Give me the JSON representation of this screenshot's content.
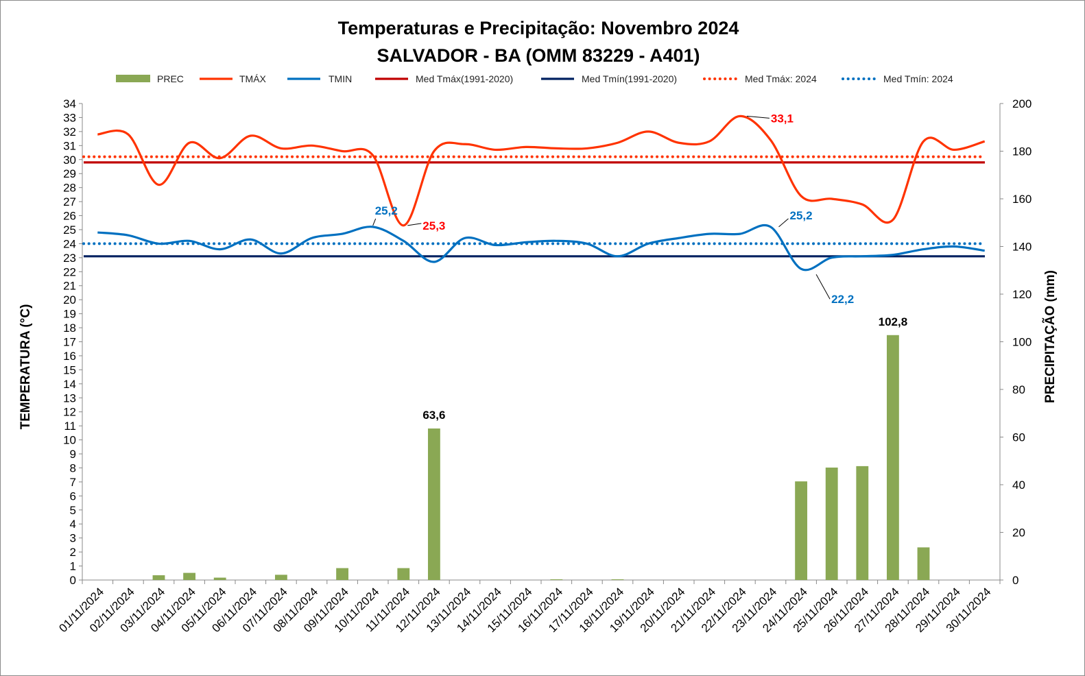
{
  "chart_data": {
    "type": "bar+line",
    "title": "Temperaturas e Precipitação: Novembro 2024",
    "subtitle": "SALVADOR - BA (OMM 83229 - A401)",
    "ylabel_left": "TEMPERATURA  (°C)",
    "ylabel_right": "PRECIPITAÇÃO  (mm)",
    "ylim_left": [
      0,
      34
    ],
    "ylim_right": [
      0,
      200
    ],
    "yticks_left": [
      "0",
      "1",
      "2",
      "3",
      "4",
      "5",
      "6",
      "7",
      "8",
      "9",
      "10",
      "11",
      "12",
      "13",
      "14",
      "15",
      "16",
      "17",
      "18",
      "19",
      "20",
      "21",
      "22",
      "23",
      "24",
      "25",
      "26",
      "27",
      "28",
      "29",
      "30",
      "31",
      "32",
      "33",
      "34"
    ],
    "yticks_right": [
      "0",
      "20",
      "40",
      "60",
      "80",
      "100",
      "120",
      "140",
      "160",
      "180",
      "200"
    ],
    "categories": [
      "01/11/2024",
      "02/11/2024",
      "03/11/2024",
      "04/11/2024",
      "05/11/2024",
      "06/11/2024",
      "07/11/2024",
      "08/11/2024",
      "09/11/2024",
      "10/11/2024",
      "11/11/2024",
      "12/11/2024",
      "13/11/2024",
      "14/11/2024",
      "15/11/2024",
      "16/11/2024",
      "17/11/2024",
      "18/11/2024",
      "19/11/2024",
      "20/11/2024",
      "21/11/2024",
      "22/11/2024",
      "23/11/2024",
      "24/11/2024",
      "25/11/2024",
      "26/11/2024",
      "27/11/2024",
      "28/11/2024",
      "29/11/2024",
      "30/11/2024"
    ],
    "series": [
      {
        "name": "PREC",
        "type": "bar",
        "axis": "right",
        "color": "#8aa854",
        "values": [
          0,
          0,
          2,
          3,
          1,
          0,
          2.2,
          0,
          5,
          0,
          5,
          63.6,
          0,
          0,
          0,
          0.3,
          0,
          0.3,
          0,
          0,
          0,
          0,
          0,
          41.4,
          47.2,
          47.8,
          102.8,
          13.7,
          0,
          0
        ]
      },
      {
        "name": "TMÁX",
        "type": "line",
        "axis": "left",
        "color": "#ff3300",
        "values": [
          31.8,
          31.8,
          28.2,
          31.2,
          30.1,
          31.7,
          30.8,
          31.0,
          30.6,
          30.3,
          25.3,
          30.6,
          31.1,
          30.7,
          30.9,
          30.8,
          30.8,
          31.2,
          32.0,
          31.2,
          31.3,
          33.1,
          31.4,
          27.4,
          27.2,
          26.8,
          25.7,
          31.3,
          30.7,
          31.3
        ]
      },
      {
        "name": "TMIN",
        "type": "line",
        "axis": "left",
        "color": "#0070c0",
        "values": [
          24.8,
          24.6,
          24.0,
          24.2,
          23.6,
          24.3,
          23.3,
          24.4,
          24.7,
          25.2,
          24.2,
          22.7,
          24.4,
          23.9,
          24.1,
          24.2,
          24.0,
          23.1,
          24.0,
          24.4,
          24.7,
          24.7,
          25.2,
          22.2,
          23.0,
          23.1,
          23.2,
          23.6,
          23.8,
          23.5
        ]
      },
      {
        "name": "Med Tmáx(1991-2020)",
        "type": "hline",
        "axis": "left",
        "color": "#c00000",
        "value": 29.8
      },
      {
        "name": "Med Tmín(1991-2020)",
        "type": "hline",
        "axis": "left",
        "color": "#002060",
        "value": 23.1
      },
      {
        "name": "Med Tmáx: 2024",
        "type": "hline-dotted",
        "axis": "left",
        "color": "#ff3300",
        "value": 30.2
      },
      {
        "name": "Med Tmín: 2024",
        "type": "hline-dotted",
        "axis": "left",
        "color": "#0070c0",
        "value": 24.0
      }
    ],
    "annotations": [
      {
        "text": "63,6",
        "series": "PREC",
        "index": 11
      },
      {
        "text": "102,8",
        "series": "PREC",
        "index": 26
      },
      {
        "text": "25,2",
        "series": "TMIN",
        "index": 9
      },
      {
        "text": "25,3",
        "series": "TMÁX",
        "index": 10
      },
      {
        "text": "33,1",
        "series": "TMÁX",
        "index": 21
      },
      {
        "text": "25,2",
        "series": "TMIN",
        "index": 22
      },
      {
        "text": "22,2",
        "series": "TMIN",
        "index": 23
      }
    ],
    "legend": [
      "PREC",
      "TMÁX",
      "TMIN",
      "Med Tmáx(1991-2020)",
      "Med Tmín(1991-2020)",
      "Med Tmáx: 2024",
      "Med Tmín: 2024"
    ],
    "legend_position": "top",
    "grid": false
  }
}
